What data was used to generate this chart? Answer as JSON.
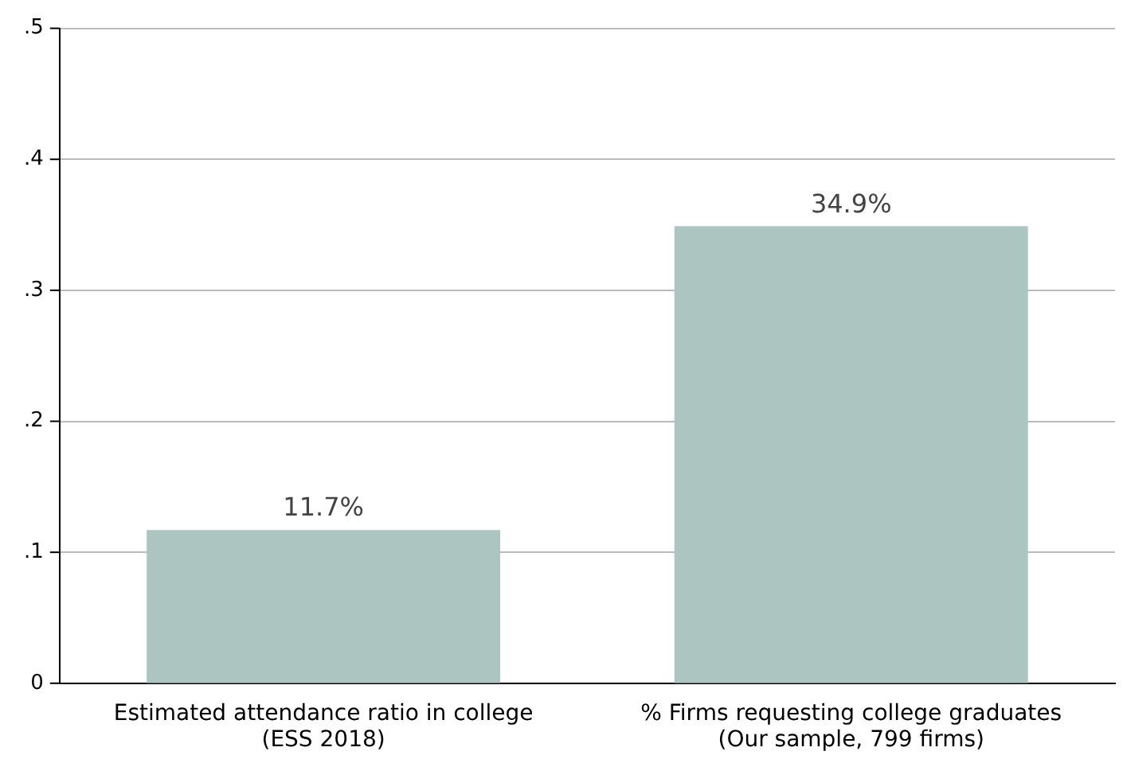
{
  "chart_data": {
    "type": "bar",
    "categories": [
      "Estimated attendance ratio in college\n(ESS 2018)",
      "% Firms requesting college graduates\n(Our sample, 799 firms)"
    ],
    "values": [
      0.117,
      0.349
    ],
    "value_labels": [
      "11.7%",
      "34.9%"
    ],
    "color": "#adc5c0",
    "ylim": [
      0,
      0.5
    ],
    "yticks": [
      {
        "value": 0,
        "label": "0"
      },
      {
        "value": 0.1,
        "label": ".1"
      },
      {
        "value": 0.2,
        "label": ".2"
      },
      {
        "value": 0.3,
        "label": ".3"
      },
      {
        "value": 0.4,
        "label": ".4"
      },
      {
        "value": 0.5,
        "label": ".5"
      }
    ],
    "grid": "y",
    "legend": false
  }
}
